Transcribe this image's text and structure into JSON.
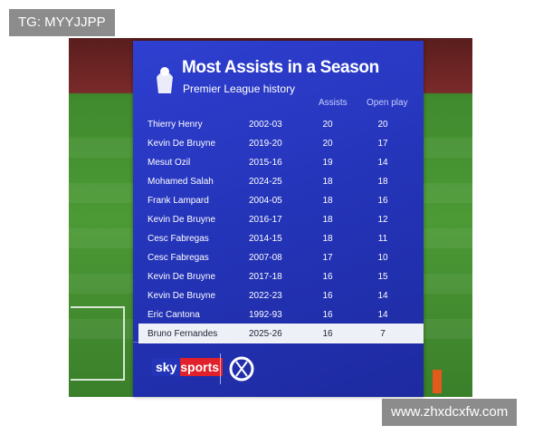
{
  "watermark_top": "TG: MYYJJPP",
  "title": "Most Assists in a Season",
  "subtitle": "Premier League history",
  "table": {
    "columns": [
      "Assists",
      "Open play"
    ],
    "rows": [
      [
        "Thierry Henry",
        "2002-03",
        20,
        20
      ],
      [
        "Kevin De Bruyne",
        "2019-20",
        20,
        17
      ],
      [
        "Mesut Ozil",
        "2015-16",
        19,
        14
      ],
      [
        "Mohamed Salah",
        "2024-25",
        18,
        18
      ],
      [
        "Frank Lampard",
        "2004-05",
        18,
        16
      ],
      [
        "Kevin De Bruyne",
        "2016-17",
        18,
        12
      ],
      [
        "Cesc Fabregas",
        "2014-15",
        18,
        11
      ],
      [
        "Cesc Fabregas",
        "2007-08",
        17,
        10
      ],
      [
        "Kevin De Bruyne",
        "2017-18",
        16,
        15
      ],
      [
        "Kevin De Bruyne",
        "2022-23",
        16,
        14
      ],
      [
        "Eric Cantona",
        "1992-93",
        16,
        14
      ],
      [
        "Bruno Fernandes",
        "2025-26",
        16,
        7
      ]
    ]
  },
  "footer": {
    "logo": "sky sports"
  },
  "watermark_bottom": "www.zhxdcxfw.com"
}
